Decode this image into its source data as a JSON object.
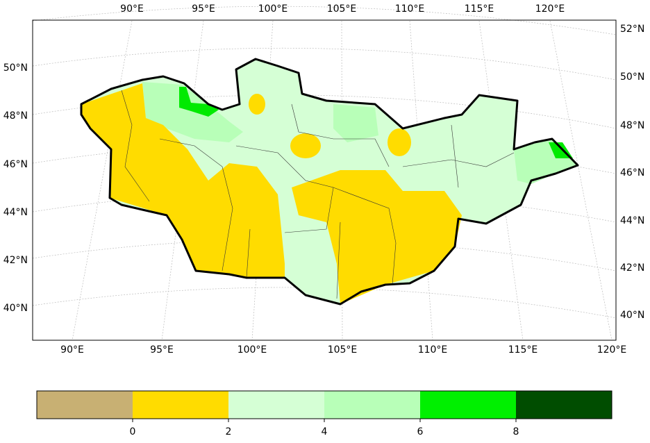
{
  "map": {
    "top_labels": [
      "90°E",
      "95°E",
      "100°E",
      "105°E",
      "110°E",
      "115°E",
      "120°E"
    ],
    "bottom_labels": [
      "90°E",
      "95°E",
      "100°E",
      "105°E",
      "110°E",
      "115°E",
      "120°E"
    ],
    "left_labels": [
      "50°N",
      "48°N",
      "46°N",
      "44°N",
      "42°N",
      "40°N"
    ],
    "right_labels": [
      "52°N",
      "50°N",
      "48°N",
      "46°N",
      "44°N",
      "42°N",
      "40°N"
    ]
  },
  "colorbar": {
    "colors": [
      "#c8b073",
      "#ffdc00",
      "#d5ffd5",
      "#b8ffb8",
      "#00f000",
      "#004d00"
    ],
    "ticks": [
      0,
      2,
      4,
      6,
      8
    ]
  }
}
